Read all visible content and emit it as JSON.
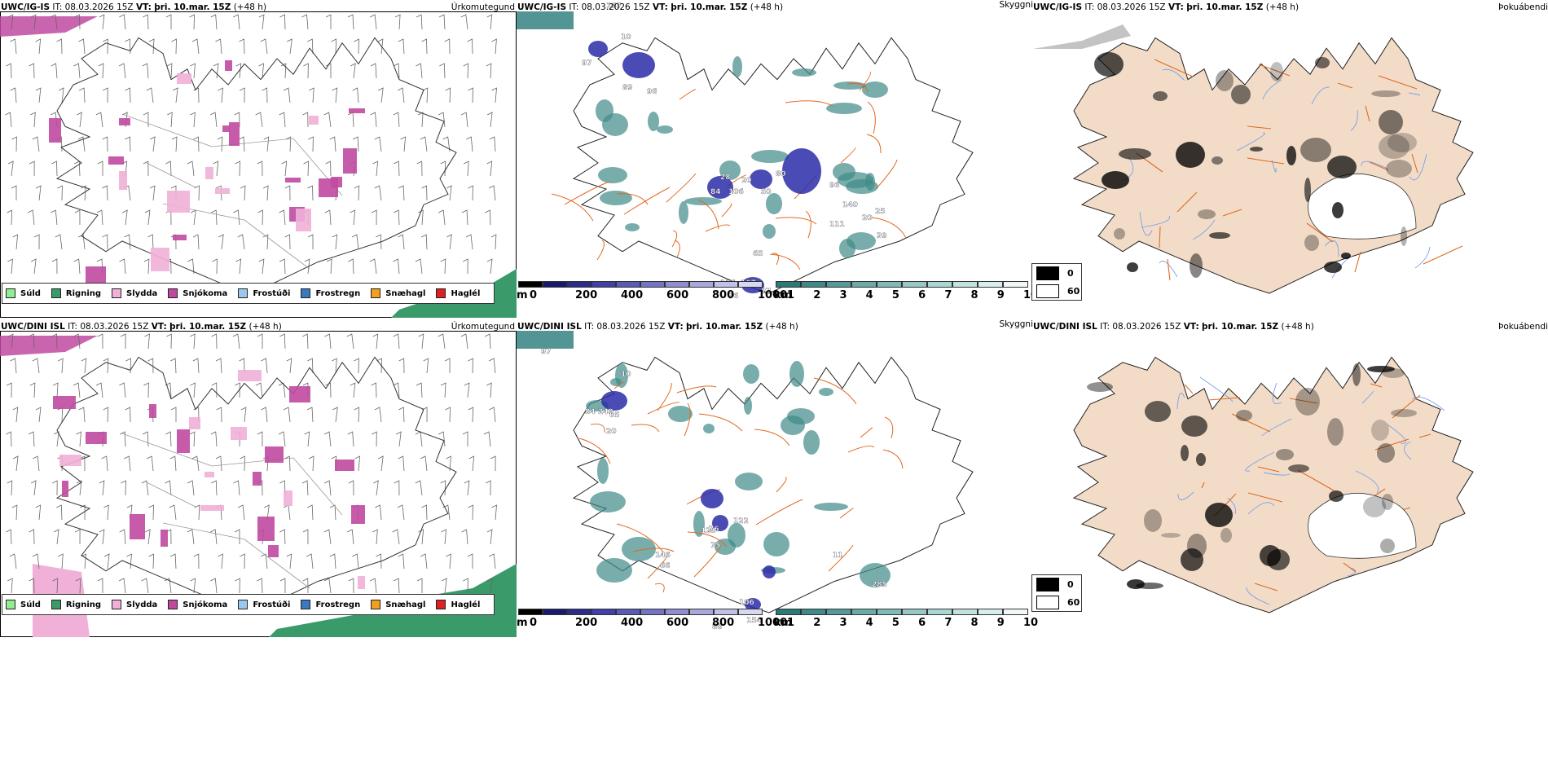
{
  "rows": [
    {
      "model": "UWC/IG-IS",
      "it_label": "IT:",
      "it_value": "08.03.2026 15Z",
      "vt_label": "VT:",
      "vt_value": "þri. 10.mar. 15Z",
      "lead": "(+48 h)",
      "precip_title": "Úrkomutegund",
      "cloud_title": "Skyggni",
      "fog_title": "Þokuábendi",
      "cloud_labels": [
        "167",
        "10",
        "97",
        "89",
        "96",
        "28",
        "20",
        "80",
        "84",
        "106",
        "50",
        "96",
        "140",
        "20",
        "111",
        "25",
        "39",
        "65",
        "136",
        "76",
        "107",
        "27"
      ]
    },
    {
      "model": "UWC/DINI ISL",
      "it_label": "IT:",
      "it_value": "08.03.2026 15Z",
      "vt_label": "VT:",
      "vt_value": "þri. 10.mar. 15Z",
      "lead": "(+48 h)",
      "precip_title": "Úrkomutegund",
      "cloud_title": "Skyggni",
      "fog_title": "Þokuábendi",
      "cloud_labels": [
        "97",
        "10",
        "84",
        "249",
        "05",
        "20",
        "120",
        "122",
        "76",
        "75",
        "146",
        "66",
        "11",
        "106",
        "154",
        "285",
        "88"
      ]
    }
  ],
  "precip_legend": [
    {
      "label": "Súld",
      "color": "#90ee90"
    },
    {
      "label": "Rigning",
      "color": "#3a9a6a"
    },
    {
      "label": "Slydda",
      "color": "#f0b0d8"
    },
    {
      "label": "Snjókoma",
      "color": "#c04aa0"
    },
    {
      "label": "Frostúði",
      "color": "#9cc8f0"
    },
    {
      "label": "Frostregn",
      "color": "#3a78c0"
    },
    {
      "label": "Snæhagl",
      "color": "#f0a020"
    },
    {
      "label": "Haglél",
      "color": "#e02020"
    }
  ],
  "cloudbase_bar": {
    "unit": "m",
    "ticks": [
      "0",
      "200",
      "400",
      "600",
      "800",
      "1000"
    ],
    "colors": [
      "#000000",
      "#191970",
      "#2b2b90",
      "#4040a8",
      "#5a5ab8",
      "#7474c4",
      "#8e8ed0",
      "#a8a8dc",
      "#c0c0e8",
      "#d8d8f2"
    ]
  },
  "visibility_bar": {
    "unit": "km",
    "ticks": [
      "1",
      "2",
      "3",
      "4",
      "5",
      "6",
      "7",
      "8",
      "9",
      "10"
    ],
    "colors": [
      "#2a7a78",
      "#3f8a88",
      "#559a98",
      "#6aaaa8",
      "#80bab8",
      "#96c8c6",
      "#acd6d4",
      "#c2e2e0",
      "#d8eeec",
      "#eef8f7"
    ]
  },
  "fog_legend": [
    {
      "label": "0",
      "color": "#000000"
    },
    {
      "label": "60",
      "color": "#ffffff"
    }
  ],
  "colors": {
    "land_fog": "#f2dcc8",
    "roads": "#e06a20",
    "rivers": "#7aa0e8",
    "rain": "#3a9a6a",
    "snow": "#c04aa0",
    "sleet": "#f0b0d8",
    "cloud_dark": "#2b2ba8",
    "vis_teal": "#3f8a88"
  }
}
